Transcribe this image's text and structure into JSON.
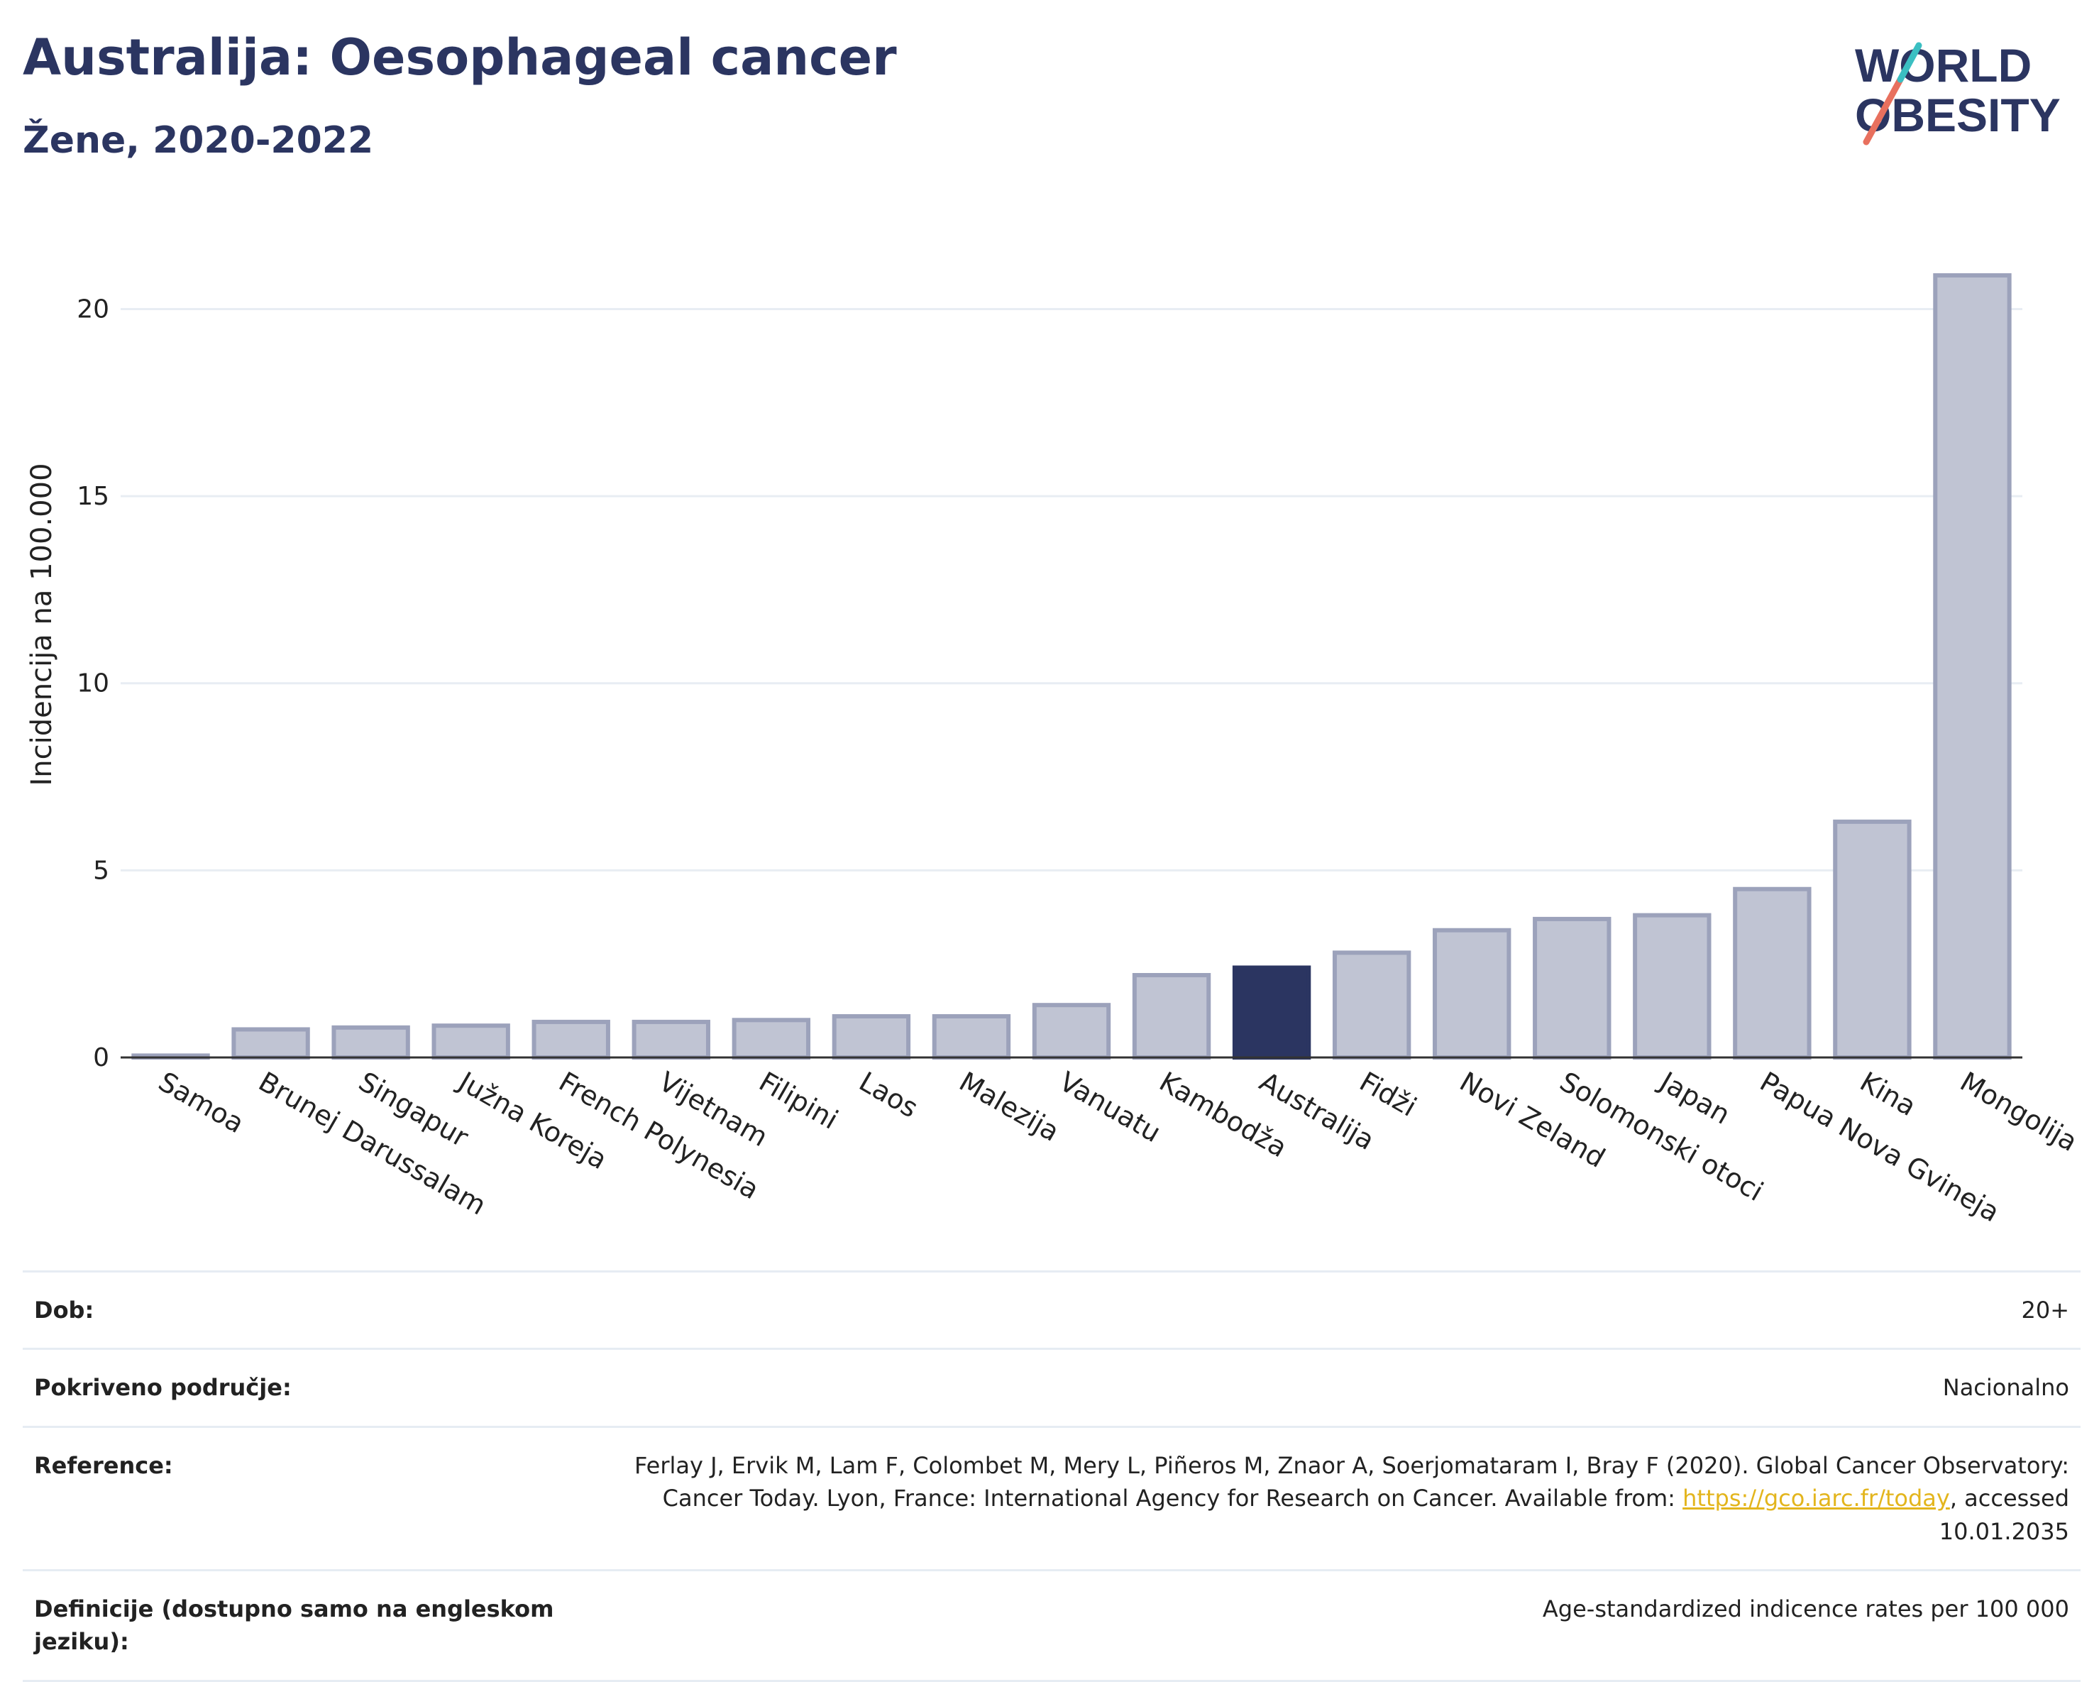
{
  "header": {
    "title": "Australija: Oesophageal cancer",
    "subtitle": "Žene, 2020-2022"
  },
  "logo": {
    "line1": "WORLD",
    "line2": "OBESITY"
  },
  "chart_data": {
    "type": "bar",
    "ylabel": "Incidencija na 100.000",
    "ylim": [
      0,
      22
    ],
    "yticks": [
      0,
      5,
      10,
      15,
      20
    ],
    "grid": true,
    "categories": [
      "Samoa",
      "Brunej Darussalam",
      "Singapur",
      "Južna Koreja",
      "French Polynesia",
      "Vijetnam",
      "Filipini",
      "Laos",
      "Malezija",
      "Vanuatu",
      "Kambodža",
      "Australija",
      "Fidži",
      "Novi Zeland",
      "Solomonski otoci",
      "Japan",
      "Papua Nova Gvineja",
      "Kina",
      "Mongolija"
    ],
    "values": [
      0.05,
      0.75,
      0.8,
      0.85,
      0.95,
      0.95,
      1.0,
      1.1,
      1.1,
      1.4,
      2.2,
      2.4,
      2.8,
      3.4,
      3.7,
      3.8,
      4.5,
      6.3,
      20.9
    ],
    "highlight": "Australija",
    "colors": {
      "bar": "#c0c4d3",
      "bar_border": "#9ca2bb",
      "highlight": "#2b3561",
      "grid": "#e8edf3",
      "axis": "#333333"
    }
  },
  "info": {
    "dob_label": "Dob:",
    "dob_value": "20+",
    "coverage_label": "Pokriveno područje:",
    "coverage_value": "Nacionalno",
    "reference_label": "Reference:",
    "reference_text1": "Ferlay J, Ervik M, Lam F, Colombet M, Mery L, Piñeros M, Znaor A, Soerjomataram I, Bray F (2020). Global Cancer Observatory: Cancer Today. Lyon, France: International Agency for Research on Cancer. Available from: ",
    "reference_link": "https://gco.iarc.fr/today",
    "reference_text2": ", accessed 10.01.2035",
    "definition_label": "Definicije (dostupno samo na engleskom jeziku):",
    "definition_value": "Age-standardized indicence rates per 100 000"
  }
}
